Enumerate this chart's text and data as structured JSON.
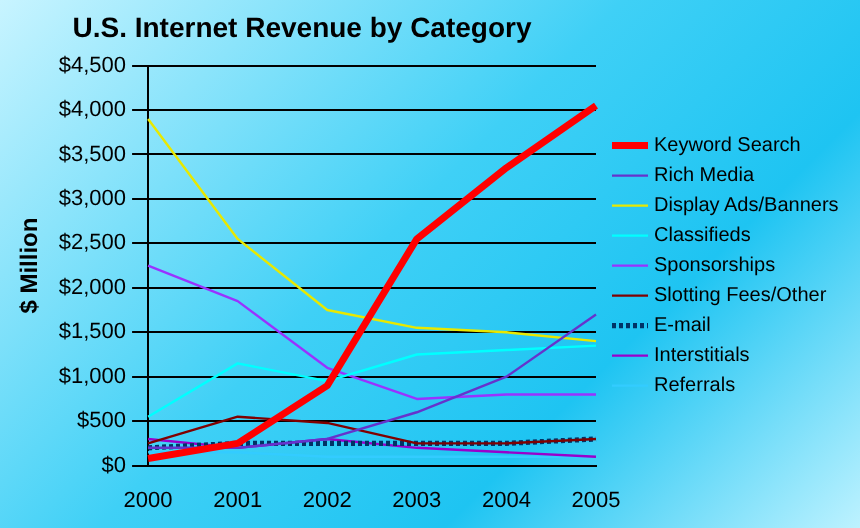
{
  "chart_data": {
    "type": "line",
    "title": "U.S. Internet Revenue by Category",
    "ylabel": "$ Million",
    "categories": [
      "2000",
      "2001",
      "2002",
      "2003",
      "2004",
      "2005"
    ],
    "series": [
      {
        "name": "Keyword Search",
        "color": "#ff0000",
        "values": [
          80,
          250,
          900,
          2550,
          3350,
          4050
        ]
      },
      {
        "name": "Rich Media",
        "color": "#6633cc",
        "values": [
          200,
          200,
          300,
          600,
          1000,
          1700
        ]
      },
      {
        "name": "Display Ads/Banners",
        "color": "#e8e800",
        "values": [
          3900,
          2550,
          1750,
          1550,
          1500,
          1400
        ]
      },
      {
        "name": "Classifieds",
        "color": "#00ffff",
        "values": [
          550,
          1150,
          950,
          1250,
          1300,
          1350
        ]
      },
      {
        "name": "Sponsorships",
        "color": "#9933ff",
        "values": [
          2250,
          1850,
          1100,
          750,
          800,
          800
        ]
      },
      {
        "name": "Slotting Fees/Other",
        "color": "#800000",
        "values": [
          250,
          550,
          480,
          250,
          250,
          300
        ]
      },
      {
        "name": "E-mail",
        "color": "#003366",
        "line_style": "dotted",
        "values": [
          200,
          250,
          250,
          250,
          250,
          300
        ]
      },
      {
        "name": "Interstitials",
        "color": "#9900cc",
        "values": [
          300,
          200,
          300,
          200,
          150,
          100
        ]
      },
      {
        "name": "Referrals",
        "color": "#33ccff",
        "values": [
          150,
          150,
          100,
          100,
          100,
          100
        ]
      }
    ],
    "ylim": [
      0,
      4500
    ],
    "yticks": [
      {
        "value": 0,
        "label": "$0"
      },
      {
        "value": 500,
        "label": "$500"
      },
      {
        "value": 1000,
        "label": "$1,000"
      },
      {
        "value": 1500,
        "label": "$1,500"
      },
      {
        "value": 2000,
        "label": "$2,000"
      },
      {
        "value": 2500,
        "label": "$2,500"
      },
      {
        "value": 3000,
        "label": "$3,000"
      },
      {
        "value": 3500,
        "label": "$3,500"
      },
      {
        "value": 4000,
        "label": "$4,000"
      },
      {
        "value": 4500,
        "label": "$4,500"
      }
    ],
    "grid": "y",
    "legend": "right",
    "marker": "none"
  }
}
